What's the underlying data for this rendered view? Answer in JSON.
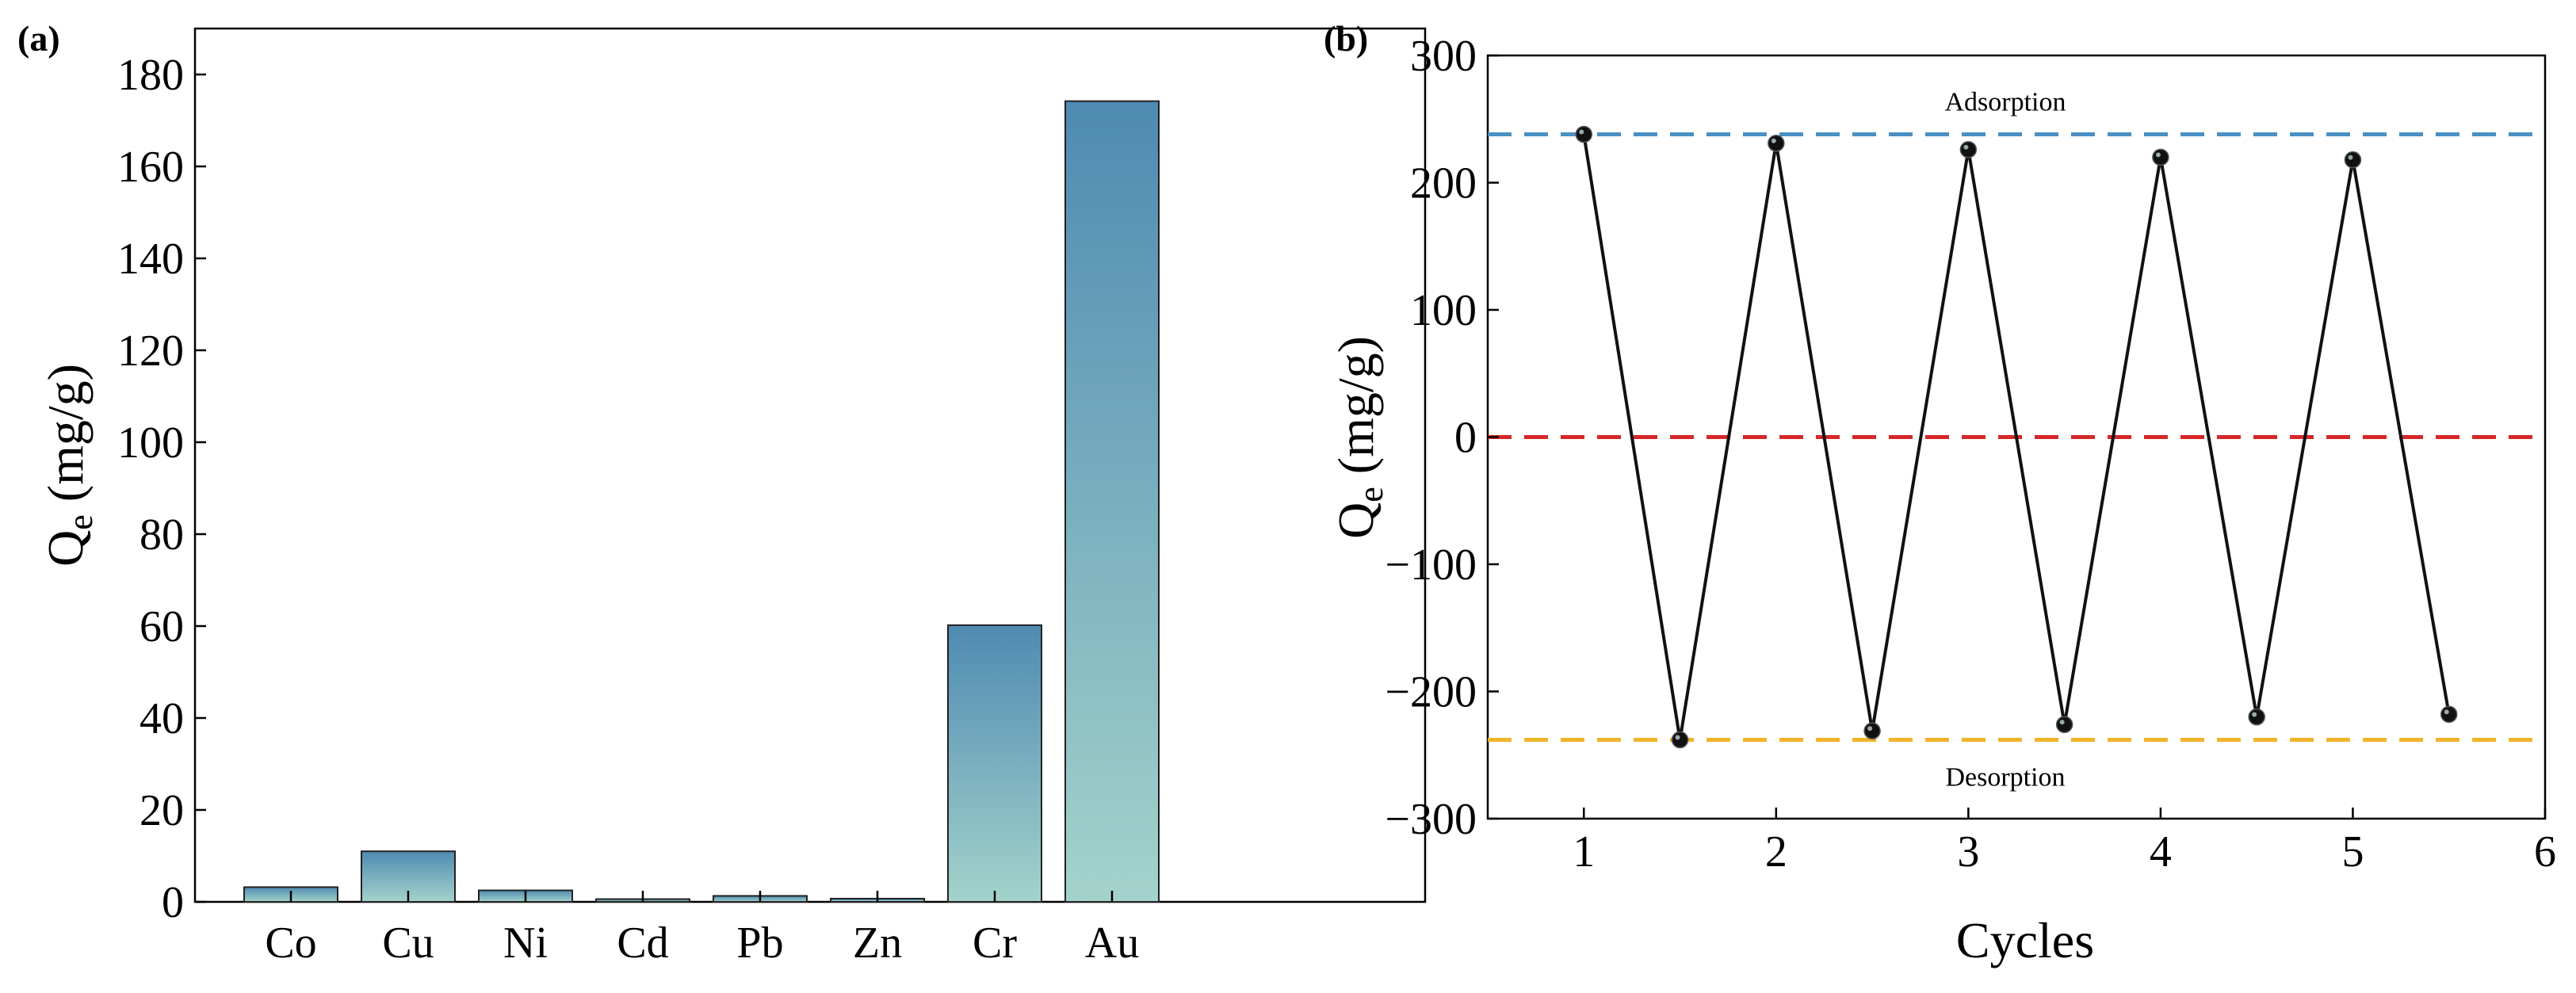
{
  "chart_data": [
    {
      "panel": "(a)",
      "type": "bar",
      "categories": [
        "Co",
        "Cu",
        "Ni",
        "Cd",
        "Pb",
        "Zn",
        "Cr",
        "Au"
      ],
      "values": [
        3.2,
        11.0,
        2.5,
        0.6,
        1.3,
        0.7,
        60.2,
        174.2
      ],
      "ylabel_main": "Q",
      "ylabel_sub": "e",
      "ylabel_unit": " (mg/g)",
      "xlabel": "",
      "ylim": [
        0,
        190
      ],
      "yticks": [
        0,
        20,
        40,
        60,
        80,
        100,
        120,
        140,
        160,
        180
      ],
      "colors": {
        "bar_top": "#4f8ab2",
        "bar_bottom": "#a3d3cb",
        "edge": "#222222"
      }
    },
    {
      "panel": "(b)",
      "type": "line",
      "x": [
        1,
        1.5,
        2,
        2.5,
        3,
        3.5,
        4,
        4.5,
        5,
        5.5
      ],
      "y": [
        238,
        -238,
        231,
        -231,
        226,
        -226,
        220,
        -220,
        218,
        -218
      ],
      "xlabel": "Cycles",
      "ylabel_main": "Q",
      "ylabel_sub": "e",
      "ylabel_unit": " (mg/g)",
      "xlim": [
        0.5,
        6
      ],
      "ylim": [
        -300,
        300
      ],
      "xticks": [
        1,
        2,
        3,
        4,
        5,
        6
      ],
      "yticks": [
        300,
        200,
        100,
        0,
        -100,
        -200,
        -300
      ],
      "reference_lines": [
        {
          "y": 238,
          "color": "#4a90c4",
          "label": "Adsorption",
          "label_position": "above"
        },
        {
          "y": 0,
          "color": "#d62728",
          "label": "",
          "label_position": ""
        },
        {
          "y": -238,
          "color": "#f0b429",
          "label": "Desorption",
          "label_position": "below"
        }
      ],
      "line_color": "#111111",
      "marker_color": "#111111"
    }
  ]
}
